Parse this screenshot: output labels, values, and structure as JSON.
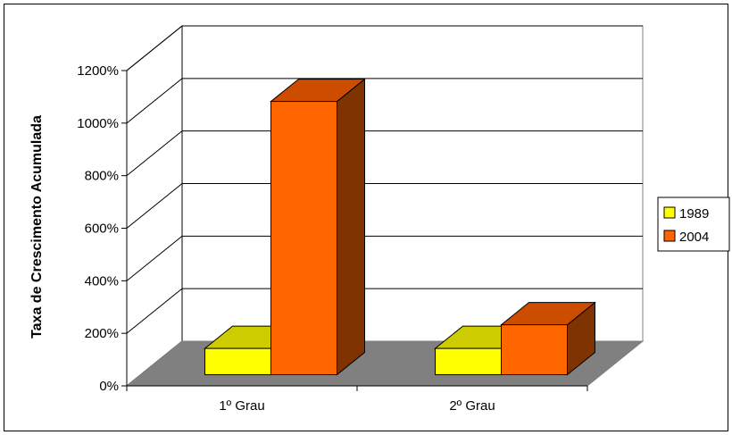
{
  "chart_data": {
    "type": "bar",
    "categories": [
      "1º Grau",
      "2º Grau"
    ],
    "series": [
      {
        "name": "1989",
        "values": [
          100,
          100
        ],
        "color": "#FFFF00",
        "top_color": "#CCCC00",
        "side_color": "#999900"
      },
      {
        "name": "2004",
        "values": [
          1040,
          190
        ],
        "color": "#FF6600",
        "top_color": "#CC4C00",
        "side_color": "#7F3300"
      }
    ],
    "ylabel": "Taxa de Crescimento Acumulada",
    "ylim": [
      0,
      1200
    ],
    "ytick_labels": [
      "0%",
      "200%",
      "400%",
      "600%",
      "800%",
      "1000%",
      "1200%"
    ],
    "grid": true,
    "legend_position": "right",
    "floor_color": "#808080",
    "wall_color": "#FFFFFF"
  }
}
